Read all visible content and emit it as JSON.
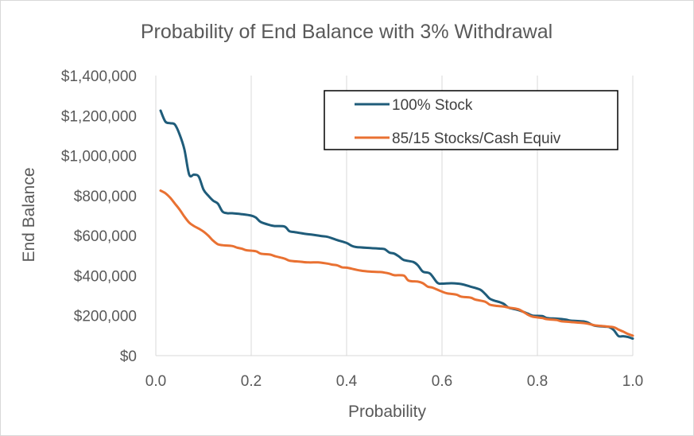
{
  "chart_data": {
    "type": "line",
    "title": "Probability of End Balance with 3% Withdrawal",
    "xlabel": "Probability",
    "ylabel": "End Balance",
    "xlim": [
      0,
      1
    ],
    "ylim": [
      0,
      1400000
    ],
    "x_ticks": [
      0,
      0.2,
      0.4,
      0.6,
      0.8,
      1.0
    ],
    "x_tick_labels": [
      "0.0",
      "0.2",
      "0.4",
      "0.6",
      "0.8",
      "1.0"
    ],
    "y_ticks": [
      0,
      200000,
      400000,
      600000,
      800000,
      1000000,
      1200000,
      1400000
    ],
    "y_tick_labels": [
      "$0",
      "$200,000",
      "$400,000",
      "$600,000",
      "$800,000",
      "$1,000,000",
      "$1,200,000",
      "$1,400,000"
    ],
    "grid": "vertical",
    "legend_position": "top-right",
    "series": [
      {
        "name": "100% Stock",
        "color": "#1f5c7a",
        "points": [
          [
            0.01,
            1225000
          ],
          [
            0.02,
            1170000
          ],
          [
            0.03,
            1162000
          ],
          [
            0.04,
            1155000
          ],
          [
            0.05,
            1105000
          ],
          [
            0.06,
            1030000
          ],
          [
            0.07,
            905000
          ],
          [
            0.08,
            905000
          ],
          [
            0.09,
            895000
          ],
          [
            0.1,
            830000
          ],
          [
            0.11,
            800000
          ],
          [
            0.12,
            775000
          ],
          [
            0.13,
            760000
          ],
          [
            0.14,
            720000
          ],
          [
            0.15,
            712000
          ],
          [
            0.16,
            712000
          ],
          [
            0.18,
            707000
          ],
          [
            0.2,
            700000
          ],
          [
            0.21,
            690000
          ],
          [
            0.22,
            668000
          ],
          [
            0.24,
            652000
          ],
          [
            0.25,
            648000
          ],
          [
            0.27,
            645000
          ],
          [
            0.28,
            622000
          ],
          [
            0.29,
            618000
          ],
          [
            0.31,
            610000
          ],
          [
            0.33,
            604000
          ],
          [
            0.35,
            597000
          ],
          [
            0.36,
            594000
          ],
          [
            0.38,
            578000
          ],
          [
            0.4,
            563000
          ],
          [
            0.41,
            550000
          ],
          [
            0.42,
            543000
          ],
          [
            0.45,
            538000
          ],
          [
            0.47,
            535000
          ],
          [
            0.48,
            532000
          ],
          [
            0.49,
            515000
          ],
          [
            0.5,
            510000
          ],
          [
            0.51,
            495000
          ],
          [
            0.52,
            478000
          ],
          [
            0.54,
            468000
          ],
          [
            0.55,
            450000
          ],
          [
            0.56,
            420000
          ],
          [
            0.575,
            410000
          ],
          [
            0.59,
            365000
          ],
          [
            0.6,
            360000
          ],
          [
            0.62,
            362000
          ],
          [
            0.64,
            358000
          ],
          [
            0.66,
            345000
          ],
          [
            0.68,
            330000
          ],
          [
            0.69,
            310000
          ],
          [
            0.7,
            285000
          ],
          [
            0.71,
            275000
          ],
          [
            0.72,
            268000
          ],
          [
            0.73,
            258000
          ],
          [
            0.74,
            240000
          ],
          [
            0.76,
            228000
          ],
          [
            0.78,
            210000
          ],
          [
            0.79,
            200000
          ],
          [
            0.81,
            198000
          ],
          [
            0.82,
            188000
          ],
          [
            0.84,
            185000
          ],
          [
            0.86,
            180000
          ],
          [
            0.87,
            175000
          ],
          [
            0.9,
            170000
          ],
          [
            0.91,
            160000
          ],
          [
            0.92,
            150000
          ],
          [
            0.94,
            145000
          ],
          [
            0.95,
            143000
          ],
          [
            0.96,
            128000
          ],
          [
            0.97,
            98000
          ],
          [
            0.98,
            97000
          ],
          [
            0.99,
            93000
          ],
          [
            1.0,
            85000
          ]
        ]
      },
      {
        "name": "85/15 Stocks/Cash Equiv",
        "color": "#e97132",
        "points": [
          [
            0.01,
            825000
          ],
          [
            0.02,
            812000
          ],
          [
            0.03,
            790000
          ],
          [
            0.04,
            760000
          ],
          [
            0.05,
            730000
          ],
          [
            0.06,
            695000
          ],
          [
            0.07,
            665000
          ],
          [
            0.08,
            648000
          ],
          [
            0.09,
            635000
          ],
          [
            0.1,
            620000
          ],
          [
            0.11,
            600000
          ],
          [
            0.12,
            575000
          ],
          [
            0.13,
            557000
          ],
          [
            0.14,
            552000
          ],
          [
            0.16,
            548000
          ],
          [
            0.17,
            540000
          ],
          [
            0.18,
            535000
          ],
          [
            0.19,
            527000
          ],
          [
            0.21,
            522000
          ],
          [
            0.22,
            510000
          ],
          [
            0.24,
            505000
          ],
          [
            0.25,
            497000
          ],
          [
            0.27,
            485000
          ],
          [
            0.28,
            475000
          ],
          [
            0.3,
            470000
          ],
          [
            0.32,
            466000
          ],
          [
            0.34,
            466000
          ],
          [
            0.36,
            460000
          ],
          [
            0.37,
            455000
          ],
          [
            0.38,
            452000
          ],
          [
            0.39,
            442000
          ],
          [
            0.4,
            440000
          ],
          [
            0.41,
            435000
          ],
          [
            0.43,
            425000
          ],
          [
            0.45,
            420000
          ],
          [
            0.47,
            418000
          ],
          [
            0.48,
            415000
          ],
          [
            0.49,
            410000
          ],
          [
            0.5,
            402000
          ],
          [
            0.52,
            400000
          ],
          [
            0.53,
            375000
          ],
          [
            0.55,
            370000
          ],
          [
            0.56,
            362000
          ],
          [
            0.57,
            345000
          ],
          [
            0.58,
            340000
          ],
          [
            0.6,
            320000
          ],
          [
            0.61,
            312000
          ],
          [
            0.63,
            305000
          ],
          [
            0.64,
            295000
          ],
          [
            0.66,
            290000
          ],
          [
            0.67,
            280000
          ],
          [
            0.69,
            270000
          ],
          [
            0.7,
            255000
          ],
          [
            0.71,
            250000
          ],
          [
            0.73,
            245000
          ],
          [
            0.74,
            240000
          ],
          [
            0.76,
            232000
          ],
          [
            0.78,
            205000
          ],
          [
            0.79,
            195000
          ],
          [
            0.81,
            188000
          ],
          [
            0.82,
            182000
          ],
          [
            0.84,
            178000
          ],
          [
            0.85,
            172000
          ],
          [
            0.87,
            168000
          ],
          [
            0.9,
            162000
          ],
          [
            0.92,
            152000
          ],
          [
            0.94,
            147000
          ],
          [
            0.96,
            142000
          ],
          [
            0.97,
            130000
          ],
          [
            0.98,
            120000
          ],
          [
            0.99,
            108000
          ],
          [
            1.0,
            100000
          ]
        ]
      }
    ]
  }
}
